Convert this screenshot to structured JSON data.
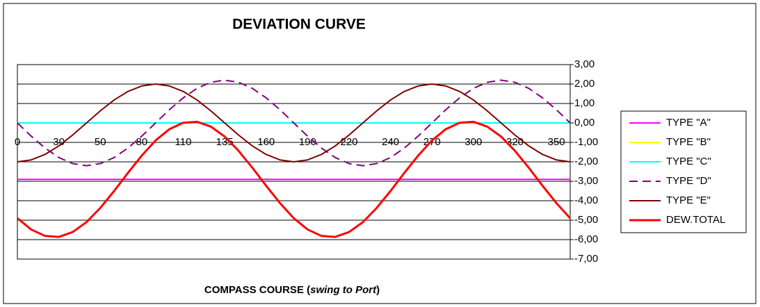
{
  "chart_data": {
    "type": "line",
    "title": "DEVIATION CURVE",
    "x_label": [
      "COMPASS COURSE (",
      "swing to Port",
      ")"
    ],
    "categories": [
      "0",
      null,
      null,
      "30",
      null,
      null,
      "50",
      null,
      null,
      "80",
      null,
      null,
      "110",
      null,
      null,
      "135",
      null,
      null,
      "160",
      null,
      null,
      "190",
      null,
      null,
      "220",
      null,
      null,
      "240",
      null,
      null,
      "270",
      null,
      null,
      "300",
      null,
      null,
      "320",
      null,
      null,
      "350",
      null
    ],
    "ylim": [
      -7,
      3
    ],
    "yticks": [
      {
        "value": 3,
        "label": "3,00"
      },
      {
        "value": 2,
        "label": "2,00"
      },
      {
        "value": 1,
        "label": "1,00"
      },
      {
        "value": 0,
        "label": "0,00"
      },
      {
        "value": -1,
        "label": "-1,00"
      },
      {
        "value": -2,
        "label": "-2,00"
      },
      {
        "value": -3,
        "label": "-3,00"
      },
      {
        "value": -4,
        "label": "-4,00"
      },
      {
        "value": -5,
        "label": "-5,00"
      },
      {
        "value": -6,
        "label": "-6,00"
      },
      {
        "value": -7,
        "label": "-7,00"
      }
    ],
    "grid": true,
    "legend": "right",
    "series": [
      {
        "name": "TYPE \"A\"",
        "color": "#ff00ff",
        "values": [
          -2.9,
          -2.9,
          -2.9,
          -2.9,
          -2.9,
          -2.9,
          -2.9,
          -2.9,
          -2.9,
          -2.9,
          -2.9,
          -2.9,
          -2.9,
          -2.9,
          -2.9,
          -2.9,
          -2.9,
          -2.9,
          -2.9,
          -2.9,
          -2.9,
          -2.9,
          -2.9,
          -2.9,
          -2.9,
          -2.9,
          -2.9,
          -2.9,
          -2.9,
          -2.9,
          -2.9,
          -2.9,
          -2.9,
          -2.9,
          -2.9,
          -2.9,
          -2.9,
          -2.9,
          -2.9,
          -2.9,
          -2.9
        ]
      },
      {
        "name": "TYPE \"B\"",
        "color": "#ffff00",
        "values": [
          0,
          0,
          0,
          0,
          0,
          0,
          0,
          0,
          0,
          0,
          0,
          0,
          0,
          0,
          0,
          0,
          0,
          0,
          0,
          0,
          0,
          0,
          0,
          0,
          0,
          0,
          0,
          0,
          0,
          0,
          0,
          0,
          0,
          0,
          0,
          0,
          0,
          0,
          0,
          0,
          0
        ]
      },
      {
        "name": "TYPE \"C\"",
        "color": "#00ffff",
        "values": [
          0,
          0,
          0,
          0,
          0,
          0,
          0,
          0,
          0,
          0,
          0,
          0,
          0,
          0,
          0,
          0,
          0,
          0,
          0,
          0,
          0,
          0,
          0,
          0,
          0,
          0,
          0,
          0,
          0,
          0,
          0,
          0,
          0,
          0,
          0,
          0,
          0,
          0,
          0,
          0,
          0
        ]
      },
      {
        "name": "TYPE \"D\"",
        "color": "#800080",
        "dashed": true,
        "values": [
          0,
          -0.68,
          -1.29,
          -1.78,
          -2.09,
          -2.2,
          -2.09,
          -1.78,
          -1.29,
          -0.68,
          0,
          0.68,
          1.29,
          1.78,
          2.09,
          2.2,
          2.09,
          1.78,
          1.29,
          0.68,
          0,
          -0.68,
          -1.29,
          -1.78,
          -2.09,
          -2.2,
          -2.09,
          -1.78,
          -1.29,
          -0.68,
          0,
          0.68,
          1.29,
          1.78,
          2.09,
          2.2,
          2.09,
          1.78,
          1.29,
          0.68,
          0
        ]
      },
      {
        "name": "TYPE \"E\"",
        "color": "#800000",
        "values": [
          -2,
          -1.9,
          -1.62,
          -1.18,
          -0.62,
          0,
          0.62,
          1.18,
          1.62,
          1.9,
          2,
          1.9,
          1.62,
          1.18,
          0.62,
          0,
          -0.62,
          -1.18,
          -1.62,
          -1.9,
          -2,
          -1.9,
          -1.62,
          -1.18,
          -0.62,
          0,
          0.62,
          1.18,
          1.62,
          1.9,
          2,
          1.9,
          1.62,
          1.18,
          0.62,
          0,
          -0.62,
          -1.18,
          -1.62,
          -1.9,
          -2
        ]
      },
      {
        "name": "DEW.TOTAL",
        "color": "#ff0000",
        "width": 3,
        "values": [
          -4.9,
          -5.48,
          -5.81,
          -5.86,
          -5.61,
          -5.1,
          -4.37,
          -3.5,
          -2.57,
          -1.68,
          -0.9,
          -0.32,
          0.01,
          0.06,
          -0.19,
          -0.7,
          -1.43,
          -2.3,
          -3.23,
          -4.12,
          -4.9,
          -5.48,
          -5.81,
          -5.86,
          -5.61,
          -5.1,
          -4.37,
          -3.5,
          -2.57,
          -1.68,
          -0.9,
          -0.32,
          0.01,
          0.06,
          -0.19,
          -0.7,
          -1.43,
          -2.3,
          -3.23,
          -4.12,
          -4.9
        ]
      }
    ]
  }
}
